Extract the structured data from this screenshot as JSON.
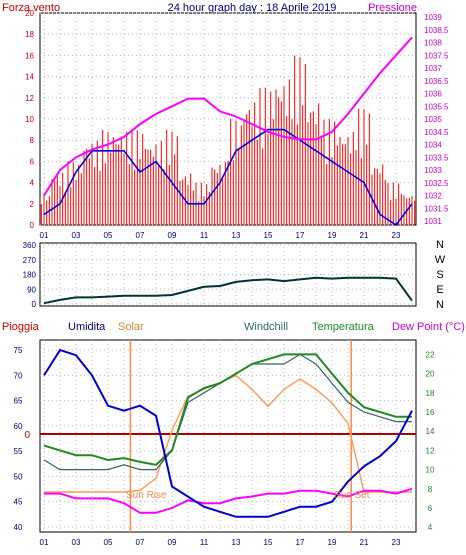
{
  "header": {
    "wind_label": "Forza vento",
    "title": "24 hour graph day : 18 Aprile 2019",
    "pressure_label": "Pressione"
  },
  "bottom_labels": {
    "rain": "Pioggia",
    "humidity": "Umidita",
    "solar": "Solar",
    "windchill": "Windchill",
    "temperature": "Temperatura",
    "dewpoint": "Dew Point (°C)",
    "sun_rise": "Sun Rise",
    "sun_set": "Sun Set"
  },
  "compass": [
    "N",
    "W",
    "S",
    "E",
    "N"
  ],
  "colors": {
    "wind_gust": "#ff0000",
    "wind_avg": "#0000dd",
    "pressure": "#ff00ff",
    "direction": "#003333",
    "humidity": "#0000cc",
    "solar": "#ff9955",
    "windchill": "#336666",
    "temperature": "#228822",
    "dewpoint": "#ff00ff",
    "rain": "#aa0000",
    "sun_lines": "#ff8844"
  },
  "chart_data": [
    {
      "type": "line",
      "x_ticks": [
        "01",
        "03",
        "05",
        "07",
        "09",
        "11",
        "13",
        "15",
        "17",
        "19",
        "21",
        "23"
      ],
      "y_left_ticks": [
        0,
        2,
        4,
        6,
        8,
        10,
        12,
        14,
        16,
        18,
        20
      ],
      "ylim_left": [
        0,
        20
      ],
      "y_right_ticks": [
        "1031",
        "1031.5",
        "1032",
        "1032.5",
        "1033",
        "1033.5",
        "1034",
        "1034.5",
        "1035",
        "1035.5",
        "1036",
        "1036.5",
        "1037",
        "1037.5",
        "1038",
        "1038.5",
        "1039"
      ],
      "ylim_right": [
        1031,
        1039
      ],
      "series": [
        {
          "name": "Forza vento",
          "values": [
            3,
            5,
            6,
            8,
            9,
            9,
            9,
            8,
            9,
            5,
            4,
            6,
            10,
            12,
            13,
            14,
            16,
            12,
            10,
            9,
            11,
            6,
            4,
            3
          ]
        },
        {
          "name": "",
          "values": [
            1,
            2,
            5,
            7,
            7,
            7,
            5,
            6,
            4,
            2,
            2,
            4,
            7,
            8,
            9,
            9,
            8,
            7,
            6,
            5,
            4,
            1,
            0,
            2
          ]
        },
        {
          "name": "Pressione",
          "values": [
            1032,
            1033,
            1033.5,
            1033.8,
            1034,
            1034.3,
            1034.8,
            1035.2,
            1035.5,
            1035.8,
            1035.8,
            1035.3,
            1035.1,
            1034.8,
            1034.5,
            1034.3,
            1034.2,
            1034.2,
            1034.5,
            1035.2,
            1036,
            1036.8,
            1037.5,
            1038.2
          ]
        }
      ]
    },
    {
      "type": "line",
      "y_ticks": [
        0,
        90,
        180,
        270,
        360
      ],
      "ylim": [
        0,
        360
      ],
      "series": [
        {
          "name": "",
          "values": [
            5,
            25,
            40,
            40,
            45,
            50,
            50,
            50,
            55,
            80,
            105,
            110,
            135,
            145,
            150,
            140,
            150,
            160,
            155,
            160,
            160,
            160,
            155,
            20
          ]
        }
      ]
    },
    {
      "type": "line",
      "y_left_ticks": [
        40,
        45,
        50,
        55,
        60,
        65,
        70,
        75
      ],
      "ylim_left": [
        39,
        77
      ],
      "y_right_ticks": [
        4,
        6,
        8,
        10,
        12,
        14,
        16,
        18,
        20,
        22
      ],
      "ylim_right": [
        3.5,
        23.5
      ],
      "rain_zero_label": "0",
      "series": [
        {
          "name": "Umidita",
          "values": [
            70,
            75,
            74,
            70,
            64,
            63,
            64,
            62,
            48,
            46,
            44,
            43,
            42,
            42,
            42,
            43,
            44,
            44,
            45,
            49,
            52,
            54,
            57,
            63
          ]
        },
        {
          "name": "Temperatura",
          "values": [
            12.5,
            12,
            11.5,
            11.5,
            11,
            11.2,
            10.8,
            10.5,
            12,
            17.5,
            18.5,
            19,
            20,
            21,
            21.5,
            22,
            22,
            22,
            20,
            18,
            16.5,
            16,
            15.5,
            15.5
          ]
        },
        {
          "name": "Windchill",
          "values": [
            11,
            10,
            10,
            10,
            10,
            10.5,
            10,
            10,
            12,
            17,
            18,
            19,
            20,
            21,
            21,
            21,
            22,
            21,
            19,
            17,
            16,
            15.5,
            15,
            15
          ]
        },
        {
          "name": "Dew Point (°C)",
          "values": [
            7.5,
            7.5,
            7,
            7,
            7,
            6.5,
            5.5,
            5.5,
            6,
            6.8,
            6.5,
            6.5,
            7,
            7.2,
            7.5,
            7.5,
            7.8,
            7.8,
            7.5,
            7.2,
            7.8,
            7.8,
            7.5,
            8
          ]
        },
        {
          "name": "Solar",
          "values": [
            0,
            0,
            0,
            0,
            0,
            0,
            5,
            40,
            180,
            280,
            300,
            320,
            340,
            300,
            250,
            300,
            330,
            300,
            260,
            200,
            0,
            0,
            0,
            0
          ]
        }
      ]
    }
  ]
}
